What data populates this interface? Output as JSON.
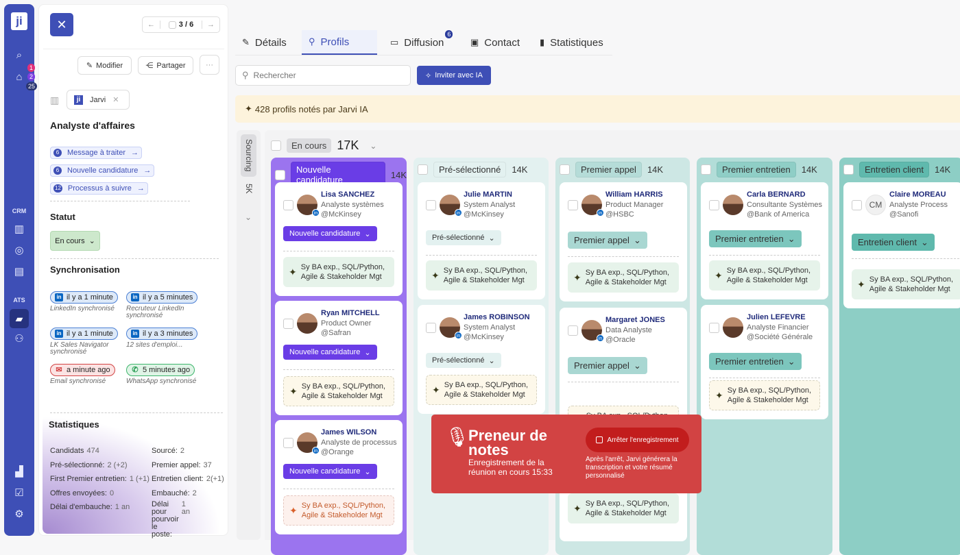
{
  "rail": {
    "logo": "ji",
    "badges": {
      "bell": "1",
      "bag": "2",
      "mail": "25"
    },
    "crm_label": "CRM",
    "ats_label": "ATS"
  },
  "panel": {
    "pager": "3 / 6",
    "modify": "Modifier",
    "share": "Partager",
    "more": "···",
    "company": "Jarvi",
    "company_logo": "ji",
    "job_title": "Analyste d'affaires",
    "actions": [
      {
        "count": "6",
        "label": "Message à traiter"
      },
      {
        "count": "6",
        "label": "Nouvelle candidature"
      },
      {
        "count": "12",
        "label": "Processus à suivre"
      }
    ],
    "status_title": "Statut",
    "status_value": "En cours",
    "sync_title": "Synchronisation",
    "syncs": [
      {
        "time": "il y a 1 minute",
        "label": "LinkedIn synchronisé",
        "type": "linkedin"
      },
      {
        "time": "il y a 5 minutes",
        "label": "Recruteur LinkedIn synchronisé",
        "type": "linkedin"
      },
      {
        "time": "il y a 1 minute",
        "label": "LK Sales Navigator synchronisé",
        "type": "linkedin"
      },
      {
        "time": "il y a 3 minutes",
        "label": "12 sites d'emploi...",
        "type": "linkedin"
      },
      {
        "time": "a minute ago",
        "label": "Email synchronisé",
        "type": "email"
      },
      {
        "time": "5 minutes ago",
        "label": "WhatsApp synchronisé",
        "type": "whatsapp"
      }
    ],
    "stats_title": "Statistiques",
    "stats": [
      {
        "k": "Candidats",
        "v": "474"
      },
      {
        "k": "Sourcé:",
        "v": "2"
      },
      {
        "k": "Pré-sélectionné:",
        "v": "2 (+2)"
      },
      {
        "k": "Premier appel:",
        "v": "37"
      },
      {
        "k": "First Premier entretien:",
        "v": "1 (+1)"
      },
      {
        "k": "Entretien client:",
        "v": "2(+1)"
      },
      {
        "k": "Offres envoyées:",
        "v": "0"
      },
      {
        "k": "Embauché:",
        "v": "2"
      },
      {
        "k": "Délai d'embauche:",
        "v": "1 an"
      },
      {
        "k": "Délai pour pourvoir le poste:",
        "v": "1 an"
      }
    ]
  },
  "tabs": [
    {
      "label": "Détails",
      "icon": "✎"
    },
    {
      "label": "Profils",
      "icon": "⚲"
    },
    {
      "label": "Diffusion",
      "icon": "▭",
      "badge": "6"
    },
    {
      "label": "Contact",
      "icon": "▣"
    },
    {
      "label": "Statistiques",
      "icon": "▮"
    }
  ],
  "search": {
    "placeholder": "Rechercher"
  },
  "invite": "Inviter avec IA",
  "banner": "428 profils notés par Jarvi IA",
  "board": {
    "side_tag": "Sourcing",
    "side_count": "5K",
    "group": "En cours",
    "group_count": "17K",
    "columns": [
      {
        "title": "Nouvelle candidature",
        "count": "14K",
        "colors": {
          "bg": "#9b74ef",
          "tag": "#6a3de6",
          "tagText": "#ffffff",
          "stage": "#6a3de6",
          "stageText": "#ffffff",
          "count": "#222"
        },
        "cards": [
          {
            "name": "Lisa SANCHEZ",
            "title": "Analyste systèmes",
            "company": "@McKinsey",
            "stage": "Nouvelle candidature",
            "ai": "Sy  BA exp., SQL/Python, Agile & Stakeholder Mgt",
            "ai_style": "green",
            "linkedin": true
          },
          {
            "name": "Ryan MITCHELL",
            "title": "Product Owner",
            "company": "@Safran",
            "stage": "Nouvelle candidature",
            "ai": "Sy  BA exp., SQL/Python, Agile & Stakeholder Mgt",
            "ai_style": "yellow",
            "linkedin": false
          },
          {
            "name": "James WILSON",
            "title": "Analyste de processus",
            "company": "@Orange",
            "stage": "Nouvelle candidature",
            "ai": "Sy  BA exp., SQL/Python, Agile & Stakeholder Mgt",
            "ai_style": "orange",
            "linkedin": true
          }
        ]
      },
      {
        "title": "Pré-sélectionné",
        "count": "14K",
        "colors": {
          "bg": "#e3f1f0",
          "tag": "#e3f1f0",
          "tagText": "#333",
          "stage": "#e3f1f0",
          "stageText": "#333",
          "count": "#222"
        },
        "cards": [
          {
            "name": "Julie MARTIN",
            "title": "System Analyst",
            "company": "@McKinsey",
            "stage": "Pré-sélectionné",
            "ai": "Sy  BA exp., SQL/Python, Agile & Stakeholder Mgt",
            "ai_style": "green",
            "linkedin": true
          },
          {
            "name": "James ROBINSON",
            "title": "System Analyst",
            "company": "@McKinsey",
            "stage": "Pré-sélectionné",
            "ai": "Sy  BA exp., SQL/Python, Agile & Stakeholder Mgt",
            "ai_style": "yellow",
            "linkedin": true
          }
        ]
      },
      {
        "title": "Premier appel",
        "count": "14K",
        "colors": {
          "bg": "#cde7e4",
          "tag": "#b5dcd8",
          "tagText": "#333",
          "stage": "#a9d7d2",
          "stageText": "#333",
          "count": "#222"
        },
        "cards": [
          {
            "name": "William HARRIS",
            "title": "Product Manager",
            "company": "@HSBC",
            "stage": "Premier appel",
            "ai": "Sy  BA exp., SQL/Python, Agile & Stakeholder Mgt",
            "ai_style": "green",
            "linkedin": true
          },
          {
            "name": "Margaret JONES",
            "title": "Data Analyste",
            "company": "@Oracle",
            "stage": "Premier appel",
            "ai": "Sy  BA exp., SQL/Python, Agile & Stakeholder Mgt",
            "ai_style": "yellow",
            "linkedin": true
          },
          {
            "name": "",
            "title": "",
            "company": "",
            "stage": "",
            "ai": "Sy  BA exp., SQL/Python, Agile & Stakeholder Mgt",
            "ai_style": "green",
            "linkedin": false
          }
        ]
      },
      {
        "title": "Premier entretien",
        "count": "14K",
        "colors": {
          "bg": "#b2ddd8",
          "tag": "#8fcec6",
          "tagText": "#333",
          "stage": "#7cc6bd",
          "stageText": "#333",
          "count": "#222"
        },
        "cards": [
          {
            "name": "Carla BERNARD",
            "title": "Consultante Systèmes",
            "company": "@Bank of America",
            "stage": "Premier entretien",
            "ai": "Sy  BA exp., SQL/Python, Agile & Stakeholder Mgt",
            "ai_style": "green",
            "linkedin": false
          },
          {
            "name": "Julien LEFEVRE",
            "title": "Analyste Financier",
            "company": "@Société Générale",
            "stage": "Premier entretien",
            "ai": "Sy  BA exp., SQL/Python, Agile & Stakeholder Mgt",
            "ai_style": "yellow",
            "linkedin": false
          }
        ]
      },
      {
        "title": "Entretien client",
        "count": "14K",
        "colors": {
          "bg": "#8dcec5",
          "tag": "#5fb9ad",
          "tagText": "#333",
          "stage": "#5fb9ad",
          "stageText": "#333",
          "count": "#222"
        },
        "cards": [
          {
            "name": "Claire MOREAU",
            "title": "Analyste Process",
            "company": "@Sanofi",
            "initials": "CM",
            "stage": "Entretien client",
            "ai": "Sy  BA exp., SQL/Python, Agile & Stakeholder Mgt",
            "ai_style": "green",
            "linkedin": false
          }
        ]
      }
    ]
  },
  "recorder": {
    "title": "Preneur de notes",
    "subtitle": "Enregistrement de la réunion en cours 15:33",
    "stop": "Arrêter l'enregistrement",
    "note": "Après l'arrêt, Jarvi générera la transcription et votre résumé personnalisé"
  }
}
